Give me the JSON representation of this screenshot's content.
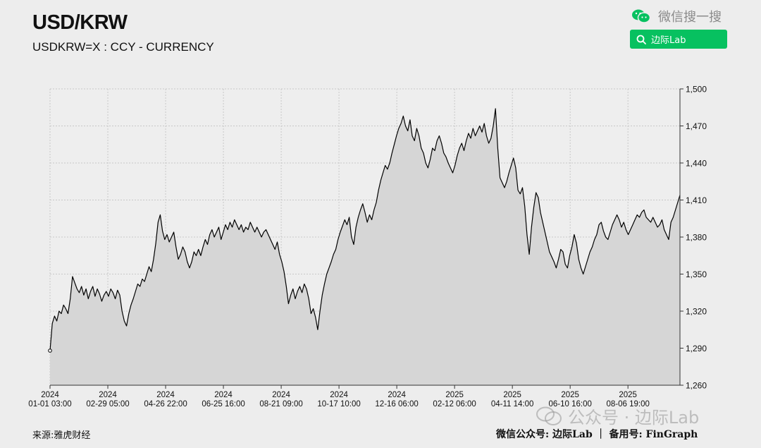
{
  "header": {
    "title": "USD/KRW",
    "subtitle": "USDKRW=X : CCY - CURRENCY"
  },
  "wechat": {
    "brand_text": "微信搜一搜",
    "search_label": "边际Lab",
    "accent_color": "#07c160"
  },
  "watermark": {
    "text": "公众号 · 边际Lab"
  },
  "footer": {
    "source": "来源:雅虎财经",
    "credit": "微信公众号: 边际Lab ｜ 备用号: FinGraph"
  },
  "chart_data": {
    "type": "area",
    "title": "USD/KRW",
    "xlabel": "",
    "ylabel": "",
    "ylim": [
      1260,
      1500
    ],
    "yticks": [
      1260,
      1290,
      1320,
      1350,
      1380,
      1410,
      1440,
      1470,
      1500
    ],
    "ytick_labels": [
      "1,260",
      "1,290",
      "1,320",
      "1,350",
      "1,380",
      "1,410",
      "1,440",
      "1,470",
      "1,500"
    ],
    "grid": true,
    "y_axis_side": "right",
    "xtick_labels": [
      [
        "2024",
        "01-01 03:00"
      ],
      [
        "2024",
        "02-29 05:00"
      ],
      [
        "2024",
        "04-26 22:00"
      ],
      [
        "2024",
        "06-25 16:00"
      ],
      [
        "2024",
        "08-21 09:00"
      ],
      [
        "2024",
        "10-17 10:00"
      ],
      [
        "2024",
        "12-16 06:00"
      ],
      [
        "2025",
        "02-12 06:00"
      ],
      [
        "2025",
        "04-11 14:00"
      ],
      [
        "2025",
        "06-10 16:00"
      ],
      [
        "2025",
        "08-06 19:00"
      ]
    ],
    "series": [
      {
        "values": [
          1288,
          1310,
          1316,
          1312,
          1320,
          1318,
          1325,
          1322,
          1318,
          1330,
          1348,
          1343,
          1338,
          1335,
          1340,
          1333,
          1338,
          1330,
          1336,
          1340,
          1332,
          1338,
          1334,
          1328,
          1333,
          1336,
          1332,
          1338,
          1335,
          1330,
          1337,
          1333,
          1320,
          1312,
          1308,
          1318,
          1325,
          1330,
          1336,
          1342,
          1340,
          1346,
          1344,
          1350,
          1356,
          1352,
          1362,
          1375,
          1392,
          1398,
          1385,
          1378,
          1382,
          1376,
          1380,
          1384,
          1372,
          1362,
          1366,
          1372,
          1368,
          1360,
          1355,
          1360,
          1368,
          1365,
          1370,
          1365,
          1372,
          1378,
          1374,
          1382,
          1386,
          1380,
          1384,
          1388,
          1378,
          1384,
          1390,
          1386,
          1392,
          1388,
          1394,
          1390,
          1386,
          1390,
          1384,
          1388,
          1386,
          1392,
          1388,
          1384,
          1388,
          1384,
          1380,
          1384,
          1386,
          1382,
          1378,
          1374,
          1370,
          1376,
          1366,
          1360,
          1352,
          1340,
          1326,
          1333,
          1338,
          1330,
          1336,
          1340,
          1335,
          1342,
          1338,
          1330,
          1318,
          1322,
          1315,
          1305,
          1320,
          1333,
          1342,
          1350,
          1355,
          1360,
          1366,
          1370,
          1378,
          1384,
          1389,
          1394,
          1390,
          1396,
          1380,
          1374,
          1388,
          1396,
          1402,
          1407,
          1400,
          1392,
          1398,
          1394,
          1402,
          1408,
          1418,
          1426,
          1432,
          1438,
          1435,
          1440,
          1448,
          1455,
          1462,
          1468,
          1472,
          1478,
          1470,
          1466,
          1475,
          1462,
          1458,
          1468,
          1462,
          1452,
          1448,
          1440,
          1436,
          1443,
          1452,
          1450,
          1458,
          1462,
          1456,
          1448,
          1445,
          1440,
          1436,
          1432,
          1438,
          1446,
          1452,
          1456,
          1450,
          1458,
          1464,
          1460,
          1468,
          1462,
          1466,
          1470,
          1465,
          1472,
          1462,
          1456,
          1460,
          1470,
          1484,
          1452,
          1428,
          1424,
          1420,
          1425,
          1432,
          1438,
          1444,
          1436,
          1418,
          1415,
          1420,
          1405,
          1382,
          1366,
          1388,
          1404,
          1416,
          1412,
          1400,
          1392,
          1384,
          1376,
          1368,
          1364,
          1360,
          1355,
          1362,
          1370,
          1368,
          1358,
          1355,
          1365,
          1372,
          1382,
          1375,
          1362,
          1355,
          1350,
          1356,
          1362,
          1368,
          1372,
          1378,
          1382,
          1390,
          1392,
          1385,
          1380,
          1378,
          1384,
          1390,
          1394,
          1398,
          1394,
          1388,
          1392,
          1386,
          1382,
          1386,
          1390,
          1394,
          1398,
          1396,
          1400,
          1402,
          1396,
          1394,
          1392,
          1396,
          1392,
          1388,
          1390,
          1394,
          1386,
          1382,
          1378,
          1392,
          1396,
          1402,
          1408,
          1414
        ]
      }
    ]
  }
}
